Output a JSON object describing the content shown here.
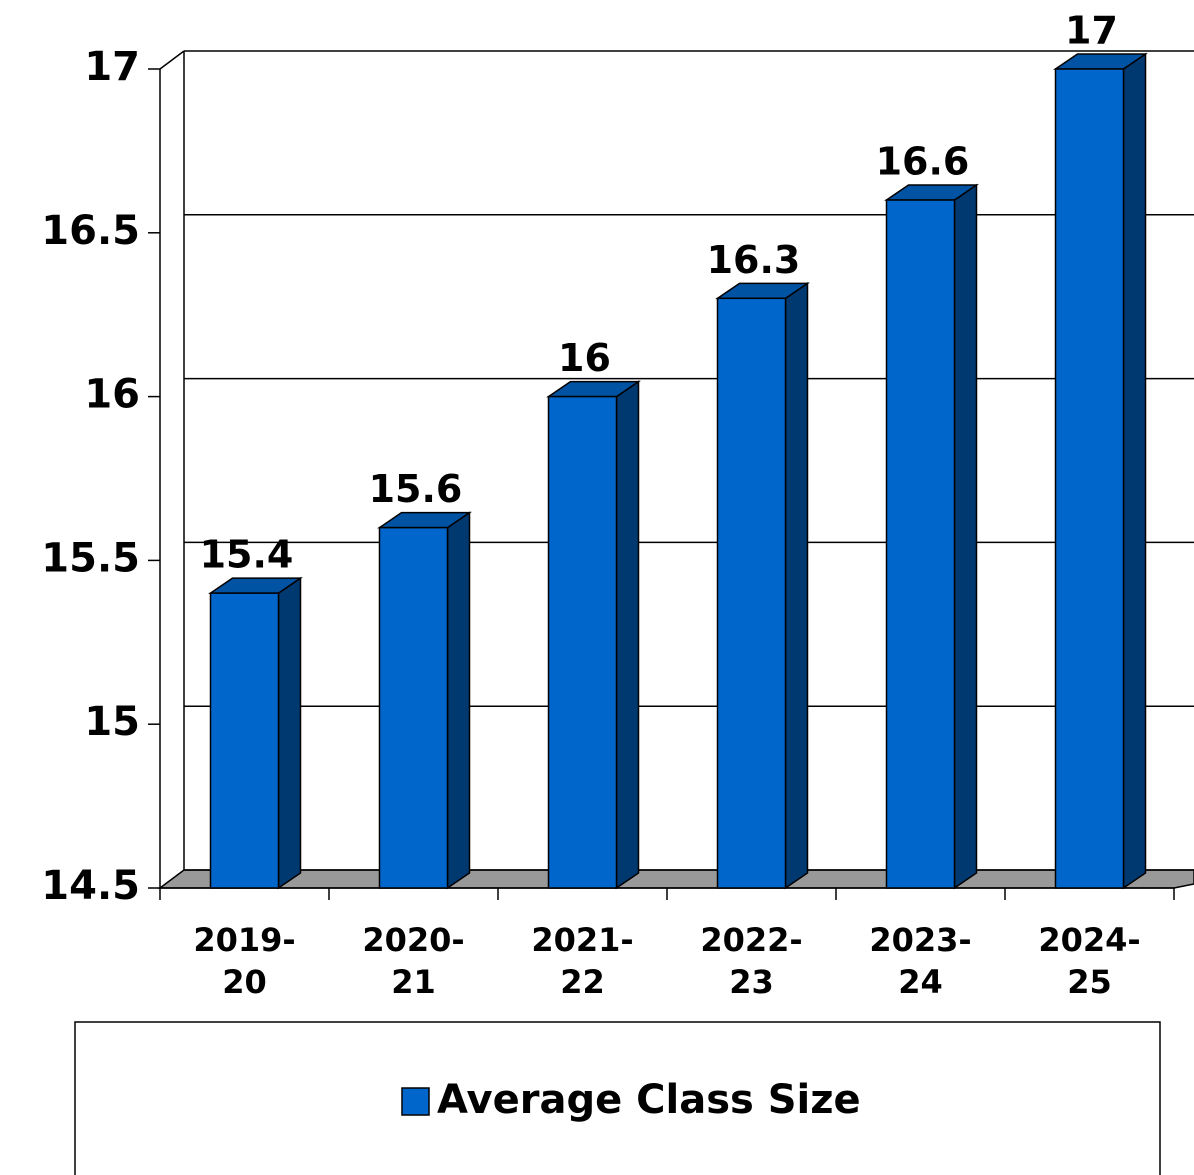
{
  "chart_data": {
    "type": "bar",
    "categories": [
      "2019-20",
      "2020-21",
      "2021-22",
      "2022-23",
      "2023-24",
      "2024-25"
    ],
    "series": [
      {
        "name": "Average Class Size",
        "color": "#0066cc",
        "values": [
          15.4,
          15.6,
          16,
          16.3,
          16.6,
          17
        ]
      }
    ],
    "ylim": [
      14.5,
      17
    ],
    "yticks": [
      14.5,
      15,
      15.5,
      16,
      16.5,
      17
    ],
    "grid": true,
    "legend": "bottom"
  }
}
